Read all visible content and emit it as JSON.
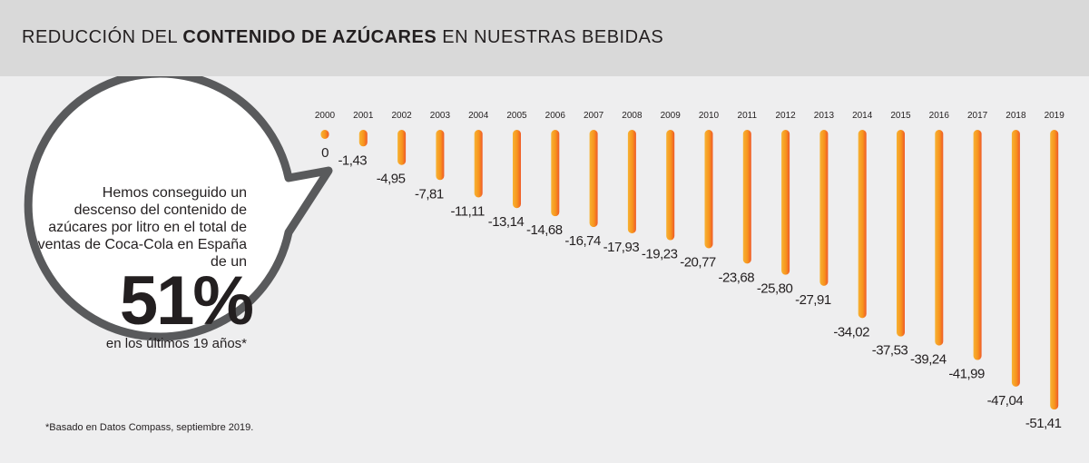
{
  "header": {
    "title_pre": "REDUCCIÓN DEL ",
    "title_bold": "CONTENIDO DE AZÚCARES",
    "title_post": " EN NUESTRAS BEBIDAS"
  },
  "bubble": {
    "text": "Hemos conseguido un descenso del contenido de azúcares por litro en el total de ventas de Coca-Cola en España de un",
    "big_value": "51%",
    "subtext": "en los últimos 19 años*"
  },
  "footnote": "*Basado en Datos Compass, septiembre 2019.",
  "colors": {
    "bar_top": "#f7b233",
    "bar_bottom": "#f7941d",
    "bar_edge": "#ef5a28",
    "header_bg": "#d9d9d9",
    "background": "#eeeeef",
    "text": "#231f20"
  },
  "chart_data": {
    "type": "bar",
    "categories": [
      "2000",
      "2001",
      "2002",
      "2003",
      "2004",
      "2005",
      "2006",
      "2007",
      "2008",
      "2009",
      "2010",
      "2011",
      "2012",
      "2013",
      "2014",
      "2015",
      "2016",
      "2017",
      "2018",
      "2019"
    ],
    "values": [
      0,
      -1.43,
      -4.95,
      -7.81,
      -11.11,
      -13.14,
      -14.68,
      -16.74,
      -17.93,
      -19.23,
      -20.77,
      -23.68,
      -25.8,
      -27.91,
      -34.02,
      -37.53,
      -39.24,
      -41.99,
      -47.04,
      -51.41
    ],
    "labels": [
      "0",
      "-1,43",
      "-4,95",
      "-7,81",
      "-11,11",
      "-13,14",
      "-14,68",
      "-16,74",
      "-17,93",
      "-19,23",
      "-20,77",
      "-23,68",
      "-25,80",
      "-27,91",
      "-34,02",
      "-37,53",
      "-39,24",
      "-41,99",
      "-47,04",
      "-51,41"
    ],
    "title": "",
    "xlabel": "",
    "ylabel": "",
    "ylim": [
      -51.41,
      0
    ]
  }
}
